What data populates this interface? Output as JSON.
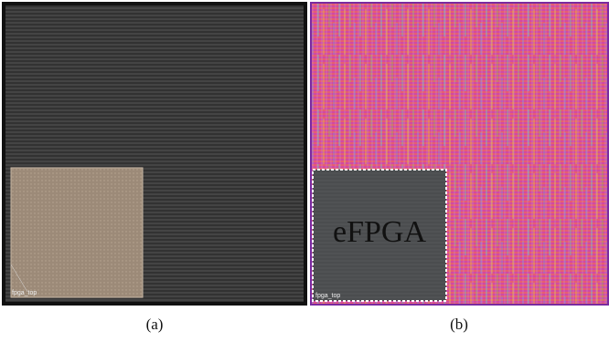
{
  "panels": [
    {
      "caption": "(a)",
      "block_label": "fpga_top"
    },
    {
      "caption": "(b)",
      "overlay_label": "eFPGA",
      "block_label": "fpga_top"
    }
  ]
}
